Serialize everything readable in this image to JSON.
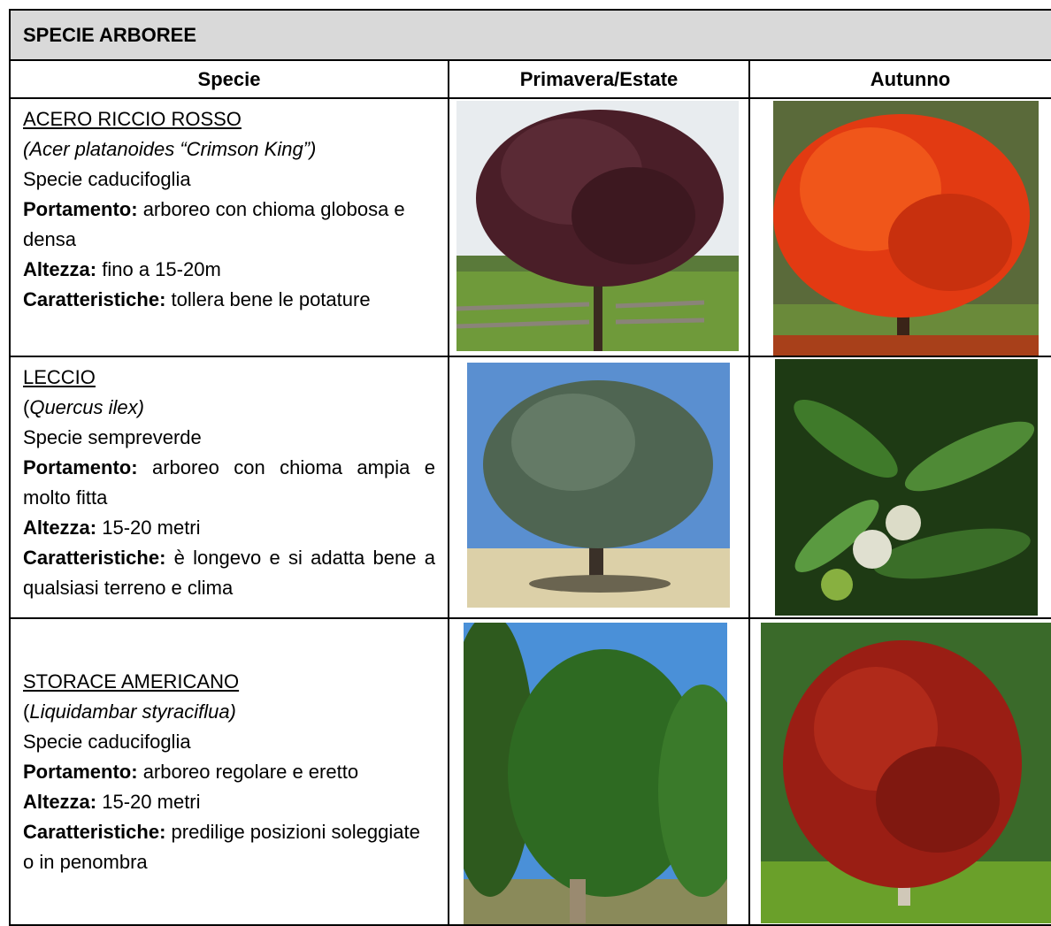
{
  "header": {
    "title": "SPECIE ARBOREE"
  },
  "table": {
    "columns": [
      "Specie",
      "Primavera/Estate",
      "Autunno"
    ],
    "rows": [
      {
        "name": "ACERO RICCIO ROSSO",
        "latin": [
          {
            "text": "(Acer platanoides “Crimson King”)",
            "italic": true
          }
        ],
        "leaf": "Specie caducifoglia",
        "fields": [
          {
            "label": "Portamento:",
            "text": "arboreo con chioma globosa e densa"
          },
          {
            "label": "Altezza:",
            "text": "fino a 15-20m"
          },
          {
            "label": "Caratteristiche:",
            "text": "tollera bene le potature"
          }
        ]
      },
      {
        "name": "LECCIO",
        "latin": [
          {
            "text": "(",
            "italic": false
          },
          {
            "text": "Quercus ilex)",
            "italic": true
          }
        ],
        "leaf": "Specie sempreverde",
        "fields": [
          {
            "label": "Portamento:",
            "text": "arboreo con chioma ampia e molto fitta"
          },
          {
            "label": "Altezza:",
            "text": "15-20 metri"
          },
          {
            "label": "Caratteristiche:",
            "text": "è longevo e si adatta bene a qualsiasi terreno e clima"
          }
        ]
      },
      {
        "name": "STORACE AMERICANO",
        "latin": [
          {
            "text": "(",
            "italic": false
          },
          {
            "text": "Liquidambar styraciflua)",
            "italic": true
          }
        ],
        "leaf": "Specie caducifoglia",
        "fields": [
          {
            "label": "Portamento:",
            "text": "arboreo regolare e eretto"
          },
          {
            "label": "Altezza:",
            "text": "15-20 metri"
          },
          {
            "label": "Caratteristiche:",
            "text": "predilige posizioni soleggiate o in penombra"
          }
        ]
      }
    ]
  }
}
